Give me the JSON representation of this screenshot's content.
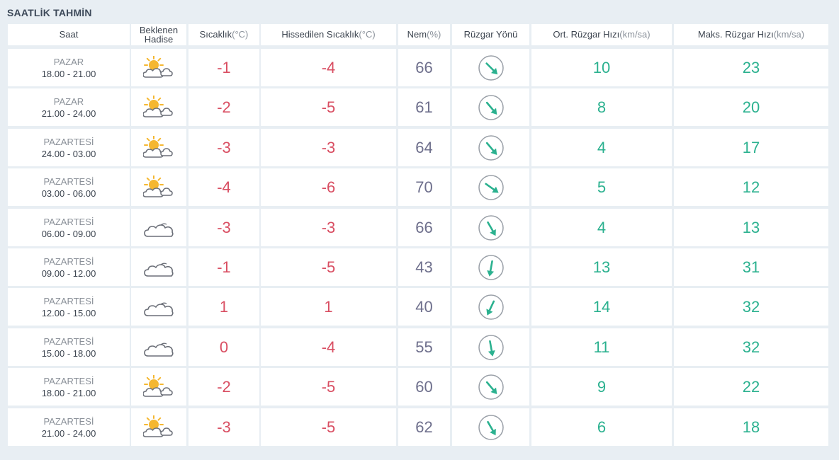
{
  "title": "SAATLİK TAHMİN",
  "headers": {
    "saat": "Saat",
    "hadise_line1": "Beklenen",
    "hadise_line2": "Hadise",
    "sicaklik": "Sıcaklık",
    "sicaklik_unit": " (°C)",
    "hissedilen": "Hissedilen Sıcaklık",
    "hissedilen_unit": " (°C)",
    "nem": "Nem",
    "nem_unit": " (%)",
    "ruzgar_yonu": "Rüzgar Yönü",
    "ort_ruzgar": "Ort. Rüzgar Hızı",
    "ort_ruzgar_unit": " (km/sa)",
    "maks_ruzgar": "Maks. Rüzgar Hızı",
    "maks_ruzgar_unit": " (km/sa)"
  },
  "colors": {
    "temperature": "#d94e62",
    "humidity": "#6e6f8c",
    "wind": "#2bb18f",
    "sun": "#f5b730",
    "cloud_stroke": "#6b6f78"
  },
  "rows": [
    {
      "day": "PAZAR",
      "time": "18.00 - 21.00",
      "icon": "partly-cloudy-icon",
      "temp": "-1",
      "feels": "-4",
      "humidity": "66",
      "wind_dir_deg": 135,
      "avg_wind": "10",
      "max_wind": "23"
    },
    {
      "day": "PAZAR",
      "time": "21.00 - 24.00",
      "icon": "partly-cloudy-icon",
      "temp": "-2",
      "feels": "-5",
      "humidity": "61",
      "wind_dir_deg": 140,
      "avg_wind": "8",
      "max_wind": "20"
    },
    {
      "day": "PAZARTESİ",
      "time": "24.00 - 03.00",
      "icon": "partly-cloudy-icon",
      "temp": "-3",
      "feels": "-3",
      "humidity": "64",
      "wind_dir_deg": 140,
      "avg_wind": "4",
      "max_wind": "17"
    },
    {
      "day": "PAZARTESİ",
      "time": "03.00 - 06.00",
      "icon": "partly-cloudy-icon",
      "temp": "-4",
      "feels": "-6",
      "humidity": "70",
      "wind_dir_deg": 125,
      "avg_wind": "5",
      "max_wind": "12"
    },
    {
      "day": "PAZARTESİ",
      "time": "06.00 - 09.00",
      "icon": "cloudy-icon",
      "temp": "-3",
      "feels": "-3",
      "humidity": "66",
      "wind_dir_deg": 150,
      "avg_wind": "4",
      "max_wind": "13"
    },
    {
      "day": "PAZARTESİ",
      "time": "09.00 - 12.00",
      "icon": "cloudy-icon",
      "temp": "-1",
      "feels": "-5",
      "humidity": "43",
      "wind_dir_deg": 190,
      "avg_wind": "13",
      "max_wind": "31"
    },
    {
      "day": "PAZARTESİ",
      "time": "12.00 - 15.00",
      "icon": "cloudy-icon",
      "temp": "1",
      "feels": "1",
      "humidity": "40",
      "wind_dir_deg": 205,
      "avg_wind": "14",
      "max_wind": "32"
    },
    {
      "day": "PAZARTESİ",
      "time": "15.00 - 18.00",
      "icon": "cloudy-icon",
      "temp": "0",
      "feels": "-4",
      "humidity": "55",
      "wind_dir_deg": 170,
      "avg_wind": "11",
      "max_wind": "32"
    },
    {
      "day": "PAZARTESİ",
      "time": "18.00 - 21.00",
      "icon": "partly-cloudy-icon",
      "temp": "-2",
      "feels": "-5",
      "humidity": "60",
      "wind_dir_deg": 140,
      "avg_wind": "9",
      "max_wind": "22"
    },
    {
      "day": "PAZARTESİ",
      "time": "21.00 - 24.00",
      "icon": "partly-cloudy-icon",
      "temp": "-3",
      "feels": "-5",
      "humidity": "62",
      "wind_dir_deg": 150,
      "avg_wind": "6",
      "max_wind": "18"
    }
  ]
}
